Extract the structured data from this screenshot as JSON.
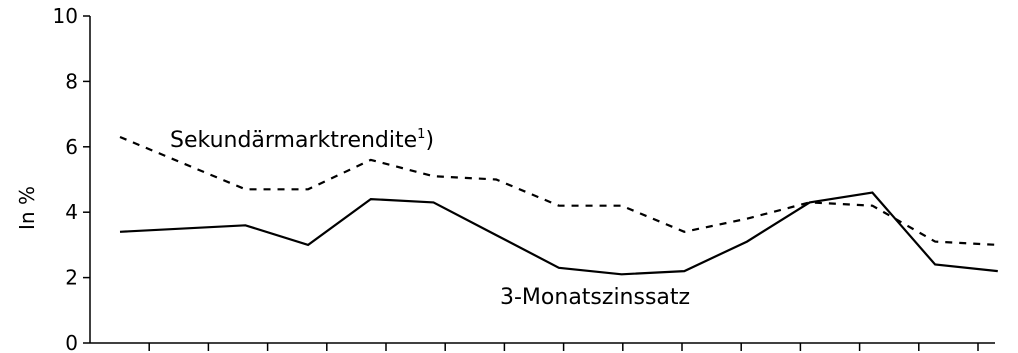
{
  "chart_data": {
    "type": "line",
    "title": "",
    "xlabel": "",
    "ylabel": "In %",
    "ylim": [
      0,
      10
    ],
    "yticks": [
      0,
      2,
      4,
      6,
      8,
      10
    ],
    "grid": false,
    "legend": "none",
    "series": [
      {
        "name": "Sekundärmarktrendite",
        "label_footnote": "1",
        "label_suffix": ")",
        "line_style": "dashed",
        "color": "#000000",
        "x": [
          0,
          2,
          3,
          4,
          5,
          6,
          7,
          8,
          9,
          10,
          11,
          12,
          13,
          14
        ],
        "values": [
          6.3,
          4.7,
          4.7,
          5.6,
          5.1,
          5.0,
          4.2,
          4.2,
          3.4,
          3.8,
          4.3,
          4.2,
          3.1,
          3.0
        ]
      },
      {
        "name": "3-Monatszinssatz",
        "line_style": "solid",
        "color": "#000000",
        "x": [
          0,
          2,
          3,
          4,
          5,
          6,
          7,
          8,
          9,
          10,
          11,
          12,
          13,
          14
        ],
        "values": [
          3.4,
          3.6,
          3.0,
          4.4,
          4.3,
          3.3,
          2.3,
          2.1,
          2.2,
          3.1,
          4.3,
          4.6,
          2.4,
          2.2
        ]
      }
    ]
  }
}
